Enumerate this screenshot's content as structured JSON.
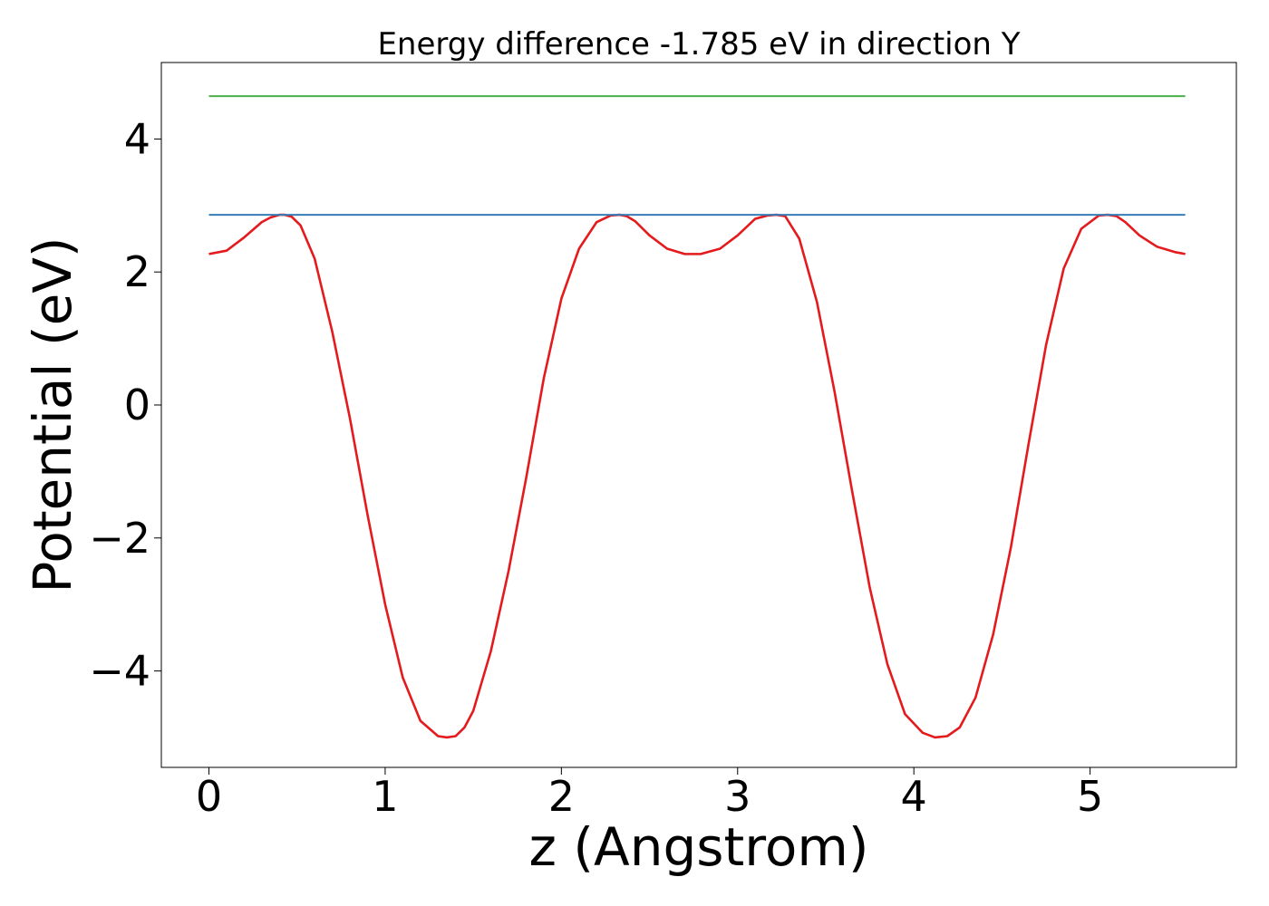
{
  "chart_data": {
    "type": "line",
    "title": "Energy difference -1.785 eV in direction Y",
    "xlabel": "z (Angstrom)",
    "ylabel": "Potential (eV)",
    "xlim": [
      -0.27,
      5.83
    ],
    "ylim": [
      -5.45,
      5.15
    ],
    "xticks": [
      0,
      1,
      2,
      3,
      4,
      5
    ],
    "xtick_labels": [
      "0",
      "1",
      "2",
      "3",
      "4",
      "5"
    ],
    "yticks": [
      -4,
      -2,
      0,
      2,
      4
    ],
    "ytick_labels": [
      "−4",
      "−2",
      "0",
      "2",
      "4"
    ],
    "grid": false,
    "series": [
      {
        "color": "#e41a1c",
        "style": "potential",
        "x": [
          0.0,
          0.1,
          0.2,
          0.3,
          0.35,
          0.4,
          0.43,
          0.47,
          0.52,
          0.6,
          0.7,
          0.8,
          0.9,
          1.0,
          1.1,
          1.2,
          1.3,
          1.35,
          1.4,
          1.45,
          1.5,
          1.6,
          1.7,
          1.8,
          1.9,
          2.0,
          2.1,
          2.2,
          2.28,
          2.33,
          2.37,
          2.42,
          2.5,
          2.6,
          2.7,
          2.79,
          2.9,
          3.0,
          3.1,
          3.17,
          3.22,
          3.27,
          3.35,
          3.45,
          3.55,
          3.65,
          3.75,
          3.85,
          3.95,
          4.05,
          4.12,
          4.19,
          4.26,
          4.35,
          4.45,
          4.55,
          4.65,
          4.75,
          4.85,
          4.95,
          5.05,
          5.1,
          5.15,
          5.2,
          5.28,
          5.38,
          5.48,
          5.54
        ],
        "y": [
          2.27,
          2.32,
          2.52,
          2.75,
          2.82,
          2.86,
          2.86,
          2.83,
          2.7,
          2.2,
          1.1,
          -0.2,
          -1.65,
          -3.0,
          -4.1,
          -4.75,
          -4.98,
          -5.0,
          -4.98,
          -4.85,
          -4.6,
          -3.7,
          -2.5,
          -1.1,
          0.4,
          1.6,
          2.35,
          2.75,
          2.85,
          2.86,
          2.84,
          2.76,
          2.55,
          2.35,
          2.27,
          2.27,
          2.35,
          2.55,
          2.8,
          2.85,
          2.86,
          2.84,
          2.5,
          1.55,
          0.2,
          -1.3,
          -2.75,
          -3.9,
          -4.65,
          -4.93,
          -5.0,
          -4.98,
          -4.85,
          -4.4,
          -3.45,
          -2.15,
          -0.6,
          0.9,
          2.05,
          2.65,
          2.85,
          2.86,
          2.84,
          2.75,
          2.55,
          2.38,
          2.3,
          2.27
        ]
      },
      {
        "color": "#377eb8",
        "style": "flat",
        "x": [
          0.0,
          5.54
        ],
        "y": [
          2.86,
          2.86
        ]
      },
      {
        "color": "#4daf4a",
        "style": "flat",
        "x": [
          0.0,
          5.54
        ],
        "y": [
          4.645,
          4.645
        ]
      }
    ]
  }
}
